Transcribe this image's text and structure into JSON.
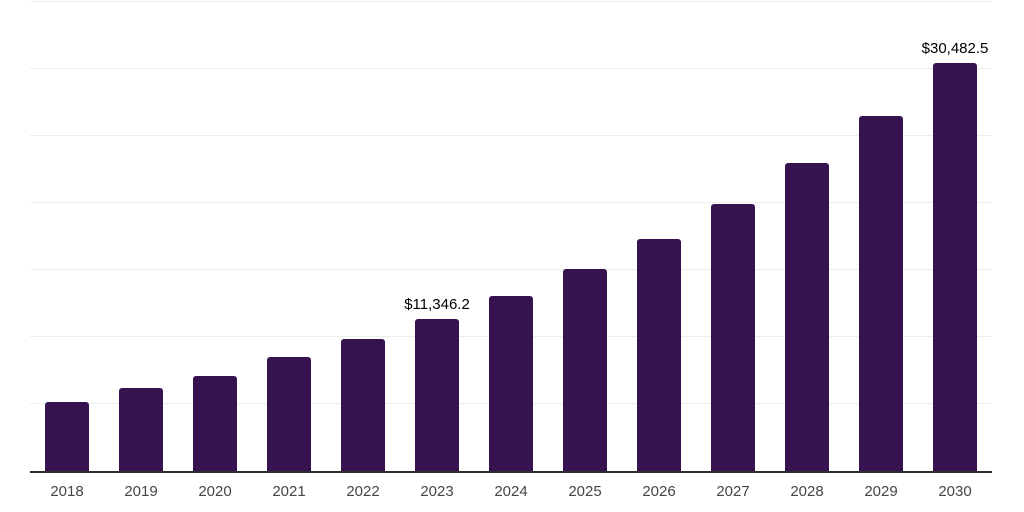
{
  "chart_data": {
    "type": "bar",
    "title": "",
    "xlabel": "",
    "ylabel": "",
    "categories": [
      "2018",
      "2019",
      "2020",
      "2021",
      "2022",
      "2023",
      "2024",
      "2025",
      "2026",
      "2027",
      "2028",
      "2029",
      "2030"
    ],
    "values": [
      5140,
      6190,
      7080,
      8500,
      9840,
      11346.2,
      13065,
      15050,
      17330,
      19955,
      22980,
      26465,
      30482.5
    ],
    "annotations": [
      {
        "index": 5,
        "text": "$11,346.2"
      },
      {
        "index": 12,
        "text": "$30,482.5"
      }
    ],
    "ylim": [
      0,
      35000
    ],
    "gridline_step": 5000,
    "grid": true,
    "legend": "none",
    "bar_color": "#36124E",
    "axis_line_color": "#2d2d2d",
    "gridline_color": "#ededed",
    "tick_label_color": "#454545",
    "data_label_color": "#000000"
  }
}
